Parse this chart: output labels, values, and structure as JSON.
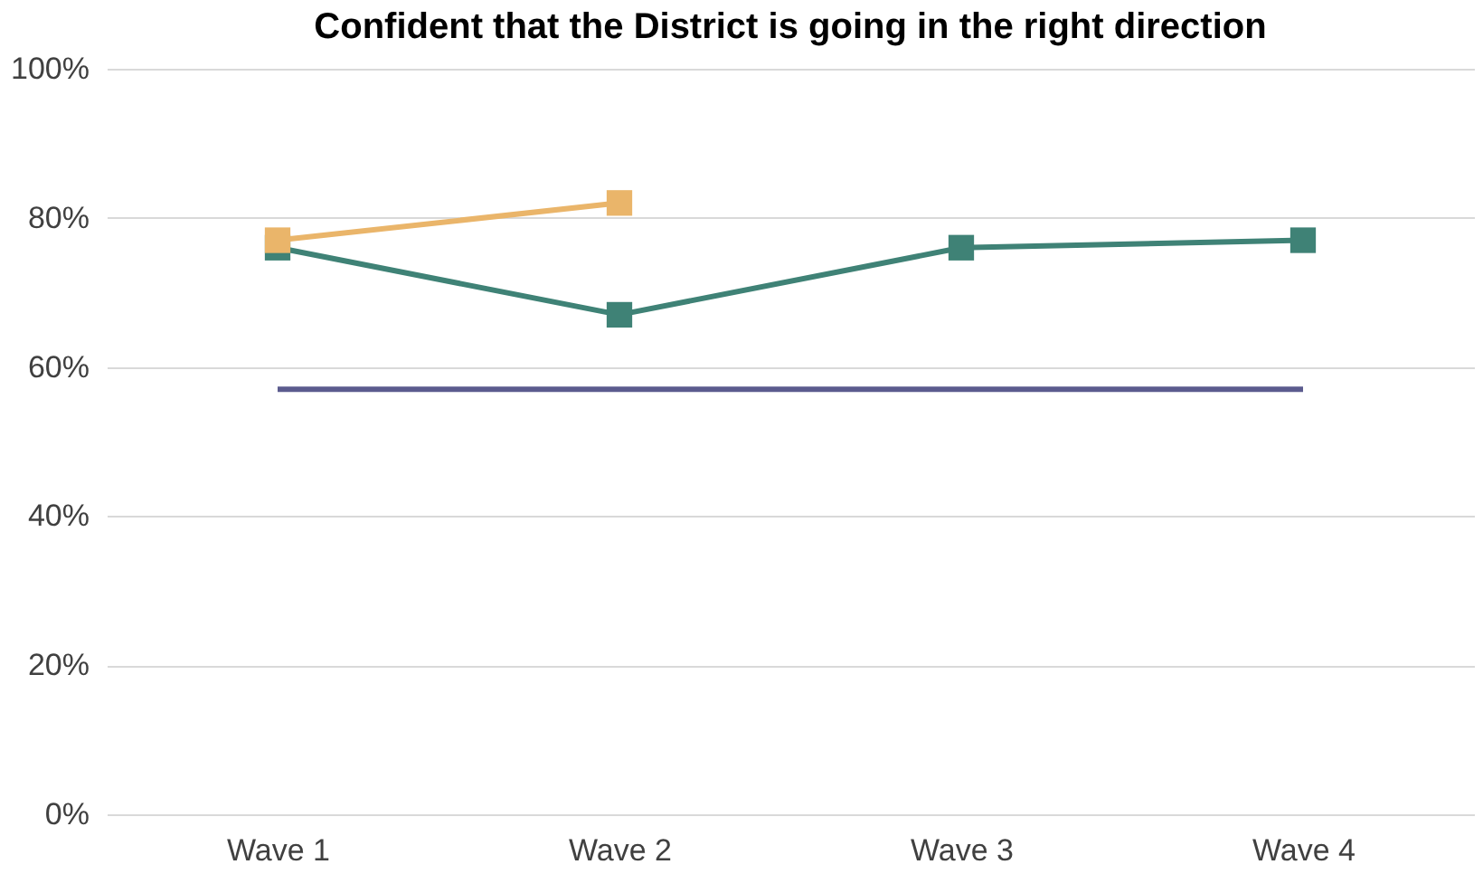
{
  "chart_data": {
    "type": "line",
    "title": "Confident that the District is going in the right direction",
    "categories": [
      "Wave 1",
      "Wave 2",
      "Wave 3",
      "Wave 4"
    ],
    "series": [
      {
        "color": "#3f8276",
        "values": [
          76,
          67,
          76,
          77
        ],
        "marker": "square"
      },
      {
        "color": "#eab56a",
        "values": [
          77,
          82,
          null,
          null
        ],
        "marker": "square"
      },
      {
        "color": "#5b5b8e",
        "values": [
          57,
          57,
          57,
          57
        ],
        "marker": "none"
      }
    ],
    "ylim": [
      0,
      100
    ],
    "yticks": [
      {
        "value": 0,
        "label": "0%"
      },
      {
        "value": 20,
        "label": "20%"
      },
      {
        "value": 40,
        "label": "40%"
      },
      {
        "value": 60,
        "label": "60%"
      },
      {
        "value": 80,
        "label": "80%"
      },
      {
        "value": 100,
        "label": "100%"
      }
    ],
    "grid": "y",
    "line_style": "solid"
  }
}
